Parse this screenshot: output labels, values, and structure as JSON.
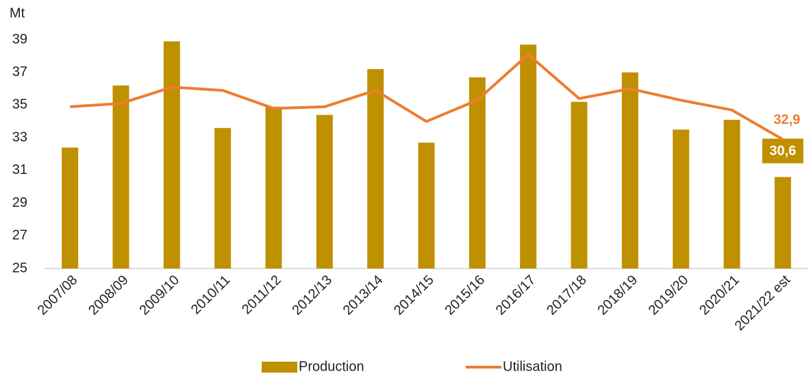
{
  "chart_data": {
    "type": "bar_line",
    "y_axis_label": "Mt",
    "categories": [
      "2007/08",
      "2008/09",
      "2009/10",
      "2010/11",
      "2011/12",
      "2012/13",
      "2013/14",
      "2014/15",
      "2015/16",
      "2016/17",
      "2017/18",
      "2018/19",
      "2019/20",
      "2020/21",
      "2021/22 est"
    ],
    "series": [
      {
        "name": "Production",
        "type": "bar",
        "color": "#bf9000",
        "values": [
          32.4,
          36.2,
          38.9,
          33.6,
          34.9,
          34.4,
          37.2,
          32.7,
          36.7,
          38.7,
          35.2,
          37.0,
          33.5,
          34.1,
          30.6
        ],
        "value_labels": [
          null,
          null,
          null,
          null,
          null,
          null,
          null,
          null,
          null,
          null,
          null,
          null,
          null,
          null,
          "30,6"
        ]
      },
      {
        "name": "Utilisation",
        "type": "line",
        "color": "#ed7d31",
        "values": [
          34.9,
          35.1,
          36.1,
          35.9,
          34.8,
          34.9,
          35.9,
          34.0,
          35.3,
          38.1,
          35.4,
          36.0,
          35.3,
          34.7,
          32.9
        ],
        "value_labels": [
          null,
          null,
          null,
          null,
          null,
          null,
          null,
          null,
          null,
          null,
          null,
          null,
          null,
          null,
          "32,9"
        ]
      }
    ],
    "ylim": [
      25,
      39
    ],
    "yticks": [
      25,
      27,
      29,
      31,
      33,
      35,
      37,
      39
    ],
    "grid": false,
    "legend": "bottom"
  }
}
